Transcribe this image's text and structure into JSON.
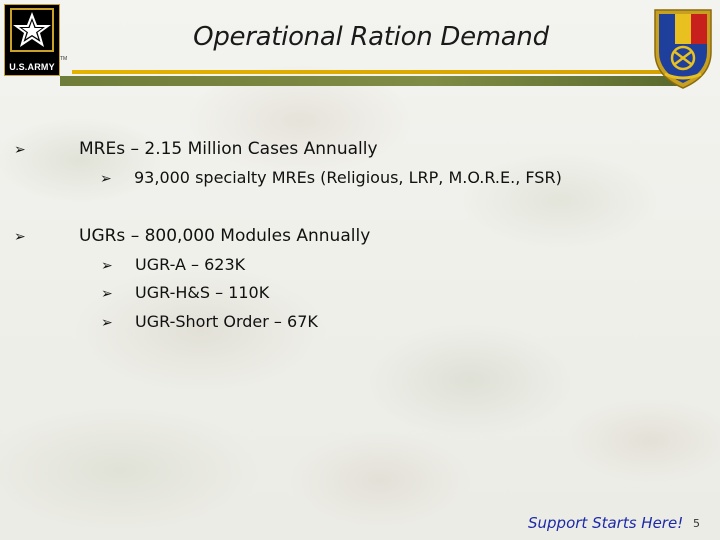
{
  "slide": {
    "title": "Operational Ration Demand",
    "logo_wordmark": "U.S.ARMY",
    "logo_tm": "TM",
    "footer_text": "Support Starts Here!",
    "page_number": "5"
  },
  "bullets": [
    {
      "level": 1,
      "text": "MREs – 2.15  Million Cases Annually"
    },
    {
      "level": 2,
      "text": "93,000 specialty MREs (Religious, LRP, M.O.R.E., FSR)"
    },
    {
      "level": 1,
      "text": "UGRs – 800,000 Modules Annually"
    },
    {
      "level": 2,
      "text": "UGR-A – 623K"
    },
    {
      "level": 2,
      "text": "UGR-H&S – 110K"
    },
    {
      "level": 2,
      "text": "UGR-Short Order – 67K"
    }
  ],
  "icons": {
    "bullet": "arrow-bullet-icon",
    "logo": "us-army-star-logo",
    "insignia": "quartermaster-insignia-icon"
  },
  "colors": {
    "title_rule_gold": "#e2b300",
    "title_rule_green": "#6f7d3a",
    "footer_text": "#1c2aa8"
  }
}
